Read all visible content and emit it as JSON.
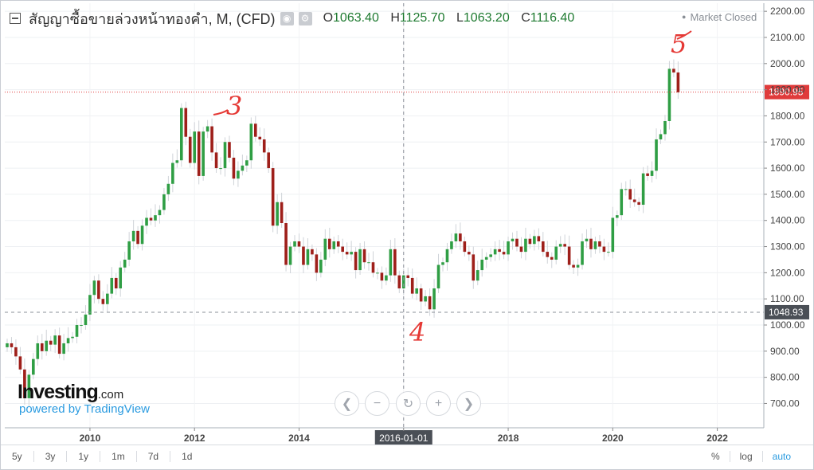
{
  "header": {
    "title": "สัญญาซื้อขายล่วงหน้าทองคำ, M, (CFD)",
    "open_label": "O",
    "open_value": "1063.40",
    "high_label": "H",
    "high_value": "1125.70",
    "low_label": "L",
    "low_value": "1063.20",
    "close_label": "C",
    "close_value": "1116.40"
  },
  "status": "Market Closed",
  "branding": {
    "name": "Investing",
    "suffix": ".com",
    "powered": "powered by TradingView"
  },
  "range_buttons": [
    "5y",
    "3y",
    "1y",
    "1m",
    "7d",
    "1d"
  ],
  "scale_buttons": {
    "percent": "%",
    "log": "log",
    "auto": "auto"
  },
  "colors": {
    "up": "#2f9e44",
    "down": "#9e1f1a",
    "price_line": "#e03b3b",
    "crosshair_label_bg": "#4a4f56",
    "accent": "#2b9be0"
  },
  "chart_data": {
    "type": "candlestick",
    "period": "monthly",
    "ylim": [
      600,
      2230
    ],
    "y_ticks": [
      700,
      800,
      900,
      1000,
      1100,
      1200,
      1300,
      1400,
      1500,
      1600,
      1700,
      1800,
      1900,
      2000,
      2100,
      2200
    ],
    "y_tick_labels": [
      "700.00",
      "800.00",
      "900.00",
      "1000.00",
      "1100.00",
      "1200.00",
      "1300.00",
      "1400.00",
      "1500.00",
      "1600.00",
      "1700.00",
      "1800.00",
      "1900.00",
      "2000.00",
      "2100.00",
      "2200.00"
    ],
    "x_ticks": [
      "2010",
      "2012",
      "2014",
      "2016-01-01",
      "2018",
      "2020",
      "2022"
    ],
    "current_price": 1890.95,
    "current_price_label": "1890.95",
    "crosshair_price": 1048.93,
    "crosshair_price_label": "1048.93",
    "crosshair_date": "2016-01-01",
    "candles_start": "2008-06",
    "closes": [
      930,
      915,
      880,
      830,
      720,
      810,
      870,
      930,
      900,
      940,
      925,
      960,
      890,
      930,
      950,
      955,
      1000,
      1000,
      1040,
      1115,
      1170,
      1100,
      1080,
      1120,
      1180,
      1140,
      1220,
      1250,
      1320,
      1360,
      1310,
      1380,
      1410,
      1400,
      1420,
      1440,
      1500,
      1540,
      1620,
      1630,
      1830,
      1720,
      1620,
      1740,
      1570,
      1740,
      1760,
      1660,
      1600,
      1600,
      1700,
      1640,
      1560,
      1590,
      1610,
      1630,
      1770,
      1720,
      1710,
      1660,
      1600,
      1380,
      1470,
      1390,
      1230,
      1300,
      1320,
      1300,
      1230,
      1290,
      1270,
      1200,
      1250,
      1330,
      1290,
      1320,
      1300,
      1280,
      1270,
      1280,
      1210,
      1290,
      1240,
      1240,
      1200,
      1200,
      1170,
      1190,
      1290,
      1190,
      1140,
      1190,
      1180,
      1120,
      1140,
      1090,
      1110,
      1060,
      1140,
      1230,
      1240,
      1290,
      1320,
      1350,
      1320,
      1280,
      1270,
      1170,
      1210,
      1250,
      1260,
      1270,
      1290,
      1280,
      1270,
      1320,
      1330,
      1300,
      1280,
      1330,
      1310,
      1340,
      1320,
      1280,
      1260,
      1250,
      1300,
      1310,
      1300,
      1230,
      1220,
      1230,
      1320,
      1330,
      1290,
      1320,
      1300,
      1280,
      1280,
      1410,
      1420,
      1520,
      1520,
      1480,
      1470,
      1460,
      1580,
      1570,
      1590,
      1710,
      1730,
      1780,
      1980,
      1966,
      1890
    ],
    "annotations": [
      "3",
      "4",
      "5"
    ]
  }
}
